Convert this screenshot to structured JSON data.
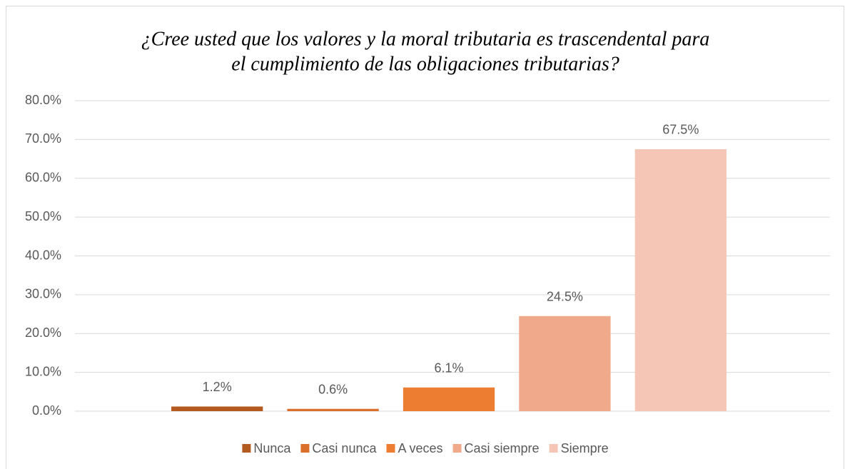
{
  "chart_data": {
    "type": "bar",
    "title": [
      "¿Cree usted que los valores y la moral tributaria es trascendental para",
      "el cumplimiento de las obligaciones tributarias?"
    ],
    "categories": [
      null
    ],
    "series": [
      {
        "name": "Nunca",
        "color": "#b35a1f",
        "values": [
          1.2
        ],
        "value_labels": [
          "1.2%"
        ]
      },
      {
        "name": "Casi nunca",
        "color": "#d96f2a",
        "values": [
          0.6
        ],
        "value_labels": [
          "0.6%"
        ]
      },
      {
        "name": "A veces",
        "color": "#ed7d31",
        "values": [
          6.1
        ],
        "value_labels": [
          "6.1%"
        ]
      },
      {
        "name": "Casi siempre",
        "color": "#f0a98a",
        "values": [
          24.5
        ],
        "value_labels": [
          "24.5%"
        ]
      },
      {
        "name": "Siempre",
        "color": "#f5c6b6",
        "values": [
          67.5
        ],
        "value_labels": [
          "67.5%"
        ]
      }
    ],
    "ylim": [
      0,
      80
    ],
    "yticks": [
      {
        "value": 0,
        "label": "0.0%"
      },
      {
        "value": 10,
        "label": "10.0%"
      },
      {
        "value": 20,
        "label": "20.0%"
      },
      {
        "value": 30,
        "label": "30.0%"
      },
      {
        "value": 40,
        "label": "40.0%"
      },
      {
        "value": 50,
        "label": "50.0%"
      },
      {
        "value": 60,
        "label": "60.0%"
      },
      {
        "value": 70,
        "label": "70.0%"
      },
      {
        "value": 80,
        "label": "80.0%"
      }
    ],
    "grid": true,
    "legend": "bottom"
  }
}
